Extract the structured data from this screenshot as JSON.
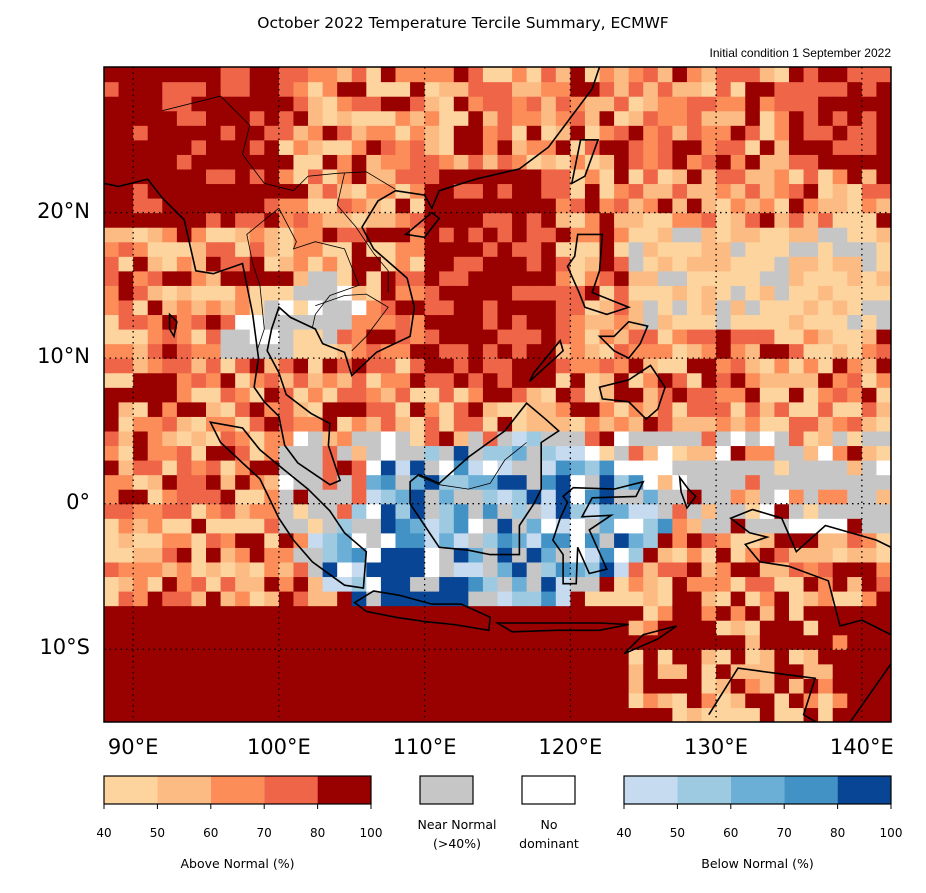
{
  "title": "October 2022 Temperature Tercile Summary, ECMWF",
  "subtitle": "Initial condition 1 September 2022",
  "map": {
    "lon_range": [
      88,
      142
    ],
    "lat_range": [
      -15,
      30
    ],
    "lat_ticks": [
      {
        "label": "20°N",
        "value": 20
      },
      {
        "label": "10°N",
        "value": 10
      },
      {
        "label": "0°",
        "value": 0
      },
      {
        "label": "10°S",
        "value": -10
      }
    ],
    "lon_ticks": [
      {
        "label": "90°E",
        "value": 90
      },
      {
        "label": "100°E",
        "value": 100
      },
      {
        "label": "110°E",
        "value": 110
      },
      {
        "label": "120°E",
        "value": 120
      },
      {
        "label": "130°E",
        "value": 130
      },
      {
        "label": "140°E",
        "value": 140
      }
    ],
    "grid": "dotted"
  },
  "legend": {
    "above": {
      "title": "Above Normal (%)",
      "ticks": [
        "40",
        "50",
        "60",
        "70",
        "80",
        "100"
      ],
      "colors": [
        "#fdd49e",
        "#fdbb84",
        "#fc8d59",
        "#ef6548",
        "#990000"
      ]
    },
    "near_normal": {
      "label_line1": "Near Normal",
      "label_line2": "(>40%)",
      "color": "#c6c6c6"
    },
    "no_dominant": {
      "label_line1": "No",
      "label_line2": "dominant",
      "color": "#ffffff"
    },
    "below": {
      "title": "Below Normal (%)",
      "ticks": [
        "40",
        "50",
        "60",
        "70",
        "80",
        "100"
      ],
      "colors": [
        "#c6dbef",
        "#9ecae1",
        "#6baed6",
        "#4292c6",
        "#084594"
      ]
    }
  }
}
